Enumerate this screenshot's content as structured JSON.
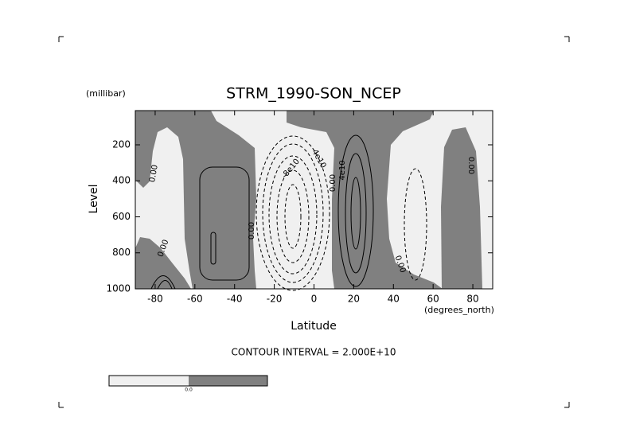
{
  "chart_data": {
    "type": "contour",
    "title": "STRM_1990-SON_NCEP",
    "y_unit": "(millibar)",
    "y_label": "Level",
    "x_label": "Latitude",
    "x_unit": "(degrees_north)",
    "footer": "CONTOUR INTERVAL = 2.000E+10",
    "xlim": [
      -90,
      90
    ],
    "xticks": [
      -80,
      -60,
      -40,
      -20,
      0,
      20,
      40,
      60,
      80
    ],
    "ylim": [
      1000,
      10
    ],
    "yticks": [
      200,
      400,
      600,
      800,
      1000
    ],
    "contour_labels": [
      "0.00",
      "0.00",
      "0.00",
      "-8e10",
      "-4e10",
      "0.00",
      "4e10",
      "0.00",
      "0.00"
    ],
    "colorbar_label": "0.0",
    "colors": {
      "negative": "#f0f0f0",
      "positive": "#808080"
    }
  }
}
